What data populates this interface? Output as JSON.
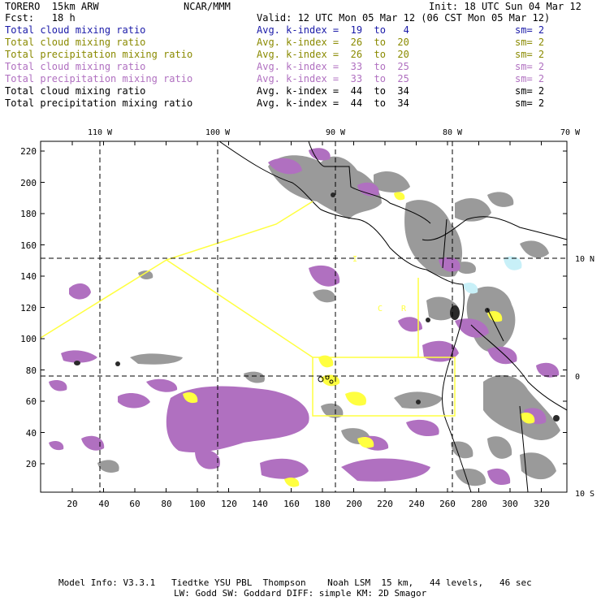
{
  "header": {
    "model": "TORERO  15km ARW",
    "center": "NCAR/MMM",
    "init": "Init: 18 UTC Sun 04 Mar 12",
    "fcst": "Fcst:   18 h",
    "valid": "Valid: 12 UTC Mon 05 Mar 12 (06 CST Mon 05 Mar 12)"
  },
  "legend": [
    {
      "field": "Total cloud mixing ratio",
      "kindex": "Avg. k-index =  19  to   4",
      "sm": "sm= 2",
      "color": "#1a1aa8"
    },
    {
      "field": "Total cloud mixing ratio",
      "kindex": "Avg. k-index =  26  to  20",
      "sm": "sm= 2",
      "color": "#8a8a00"
    },
    {
      "field": "Total precipitation mixing ratio",
      "kindex": "Avg. k-index =  26  to  20",
      "sm": "sm= 2",
      "color": "#8a8a00"
    },
    {
      "field": "Total cloud mixing ratio",
      "kindex": "Avg. k-index =  33  to  25",
      "sm": "sm= 2",
      "color": "#b070c0"
    },
    {
      "field": "Total precipitation mixing ratio",
      "kindex": "Avg. k-index =  33  to  25",
      "sm": "sm= 2",
      "color": "#b070c0"
    },
    {
      "field": "Total cloud mixing ratio",
      "kindex": "Avg. k-index =  44  to  34",
      "sm": "sm= 2",
      "color": "#000000"
    },
    {
      "field": "Total precipitation mixing ratio",
      "kindex": "Avg. k-index =  44  to  34",
      "sm": "sm= 2",
      "color": "#000000"
    }
  ],
  "map": {
    "lon_labels": [
      "110 W",
      "100 W",
      "90 W",
      "80 W",
      "70 W"
    ],
    "lat_labels": [
      "10 N",
      "0",
      "10 S"
    ],
    "x_ticks": [
      "20",
      "40",
      "60",
      "80",
      "100",
      "120",
      "140",
      "160",
      "180",
      "200",
      "220",
      "240",
      "260",
      "280",
      "300",
      "320"
    ],
    "y_ticks": [
      "20",
      "40",
      "60",
      "80",
      "100",
      "120",
      "140",
      "160",
      "180",
      "200",
      "220"
    ],
    "stray_labels": [
      "I",
      "C",
      "R"
    ],
    "colors": {
      "cloud_gray": "#9a9a9a",
      "dark_core": "#2a2a2a",
      "violet": "#b070c0",
      "yellow": "#ffff40",
      "light_cyan": "#c8f0f8",
      "coast": "#000000"
    }
  },
  "footer": {
    "line1": "Model Info: V3.3.1   Tiedtke YSU PBL  Thompson    Noah LSM  15 km,   44 levels,   46 sec",
    "line2": "LW: Godd SW: Goddard DIFF: simple KM: 2D Smagor"
  }
}
